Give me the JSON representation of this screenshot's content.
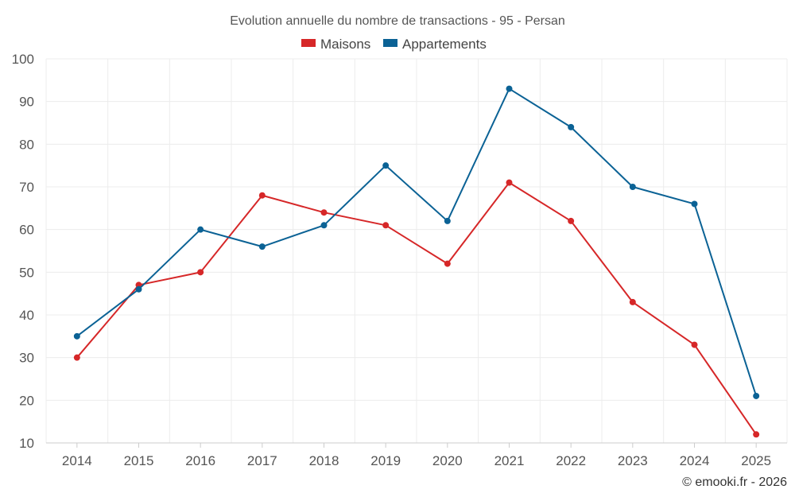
{
  "chart_data": {
    "type": "line",
    "title": "Evolution annuelle du nombre de transactions - 95 - Persan",
    "categories": [
      "2014",
      "2015",
      "2016",
      "2017",
      "2018",
      "2019",
      "2020",
      "2021",
      "2022",
      "2023",
      "2024",
      "2025"
    ],
    "series": [
      {
        "name": "Maisons",
        "color": "#d62728",
        "values": [
          30,
          47,
          50,
          68,
          64,
          61,
          52,
          71,
          62,
          43,
          33,
          12
        ]
      },
      {
        "name": "Appartements",
        "color": "#0b6295",
        "values": [
          35,
          46,
          60,
          56,
          61,
          75,
          62,
          93,
          84,
          70,
          66,
          21
        ]
      }
    ],
    "yticks": [
      "10",
      "20",
      "30",
      "40",
      "50",
      "60",
      "70",
      "80",
      "90",
      "100"
    ],
    "ylim": [
      10,
      100
    ],
    "xlabel": "",
    "ylabel": "",
    "grid": true,
    "legend_position": "top-center",
    "credit": "© emooki.fr - 2026"
  }
}
